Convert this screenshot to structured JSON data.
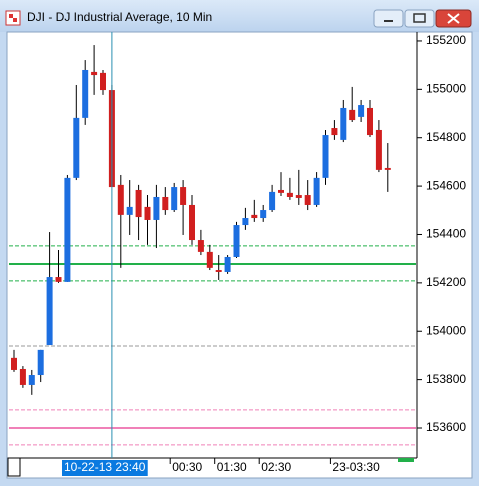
{
  "chart_data": {
    "type": "candlestick",
    "title": "DJI - DJ Industrial Average, 10 Min",
    "categories": [
      null,
      null,
      null,
      null,
      null,
      null,
      null,
      null,
      null,
      null,
      null,
      null,
      null,
      null,
      null,
      null,
      null,
      null,
      "00:30",
      null,
      null,
      null,
      null,
      "01:30",
      null,
      null,
      null,
      null,
      "02:30",
      null,
      null,
      null,
      null,
      null,
      null,
      null,
      "23-03:30",
      null,
      null,
      null,
      null,
      null,
      null
    ],
    "open": [
      153890,
      153844,
      153778,
      153819,
      153943,
      154224,
      154204,
      154634,
      154882,
      155072,
      155068,
      154997,
      154605,
      154481,
      154584,
      154514,
      154460,
      154555,
      154501,
      154596,
      154522,
      154377,
      154328,
      154253,
      154245,
      154307,
      154439,
      154481,
      154468,
      154501,
      154584,
      154572,
      154563,
      154563,
      154522,
      154634,
      154840,
      154791,
      154915,
      154886,
      154923,
      154832,
      154675
    ],
    "high": [
      153923,
      153856,
      153840,
      153923,
      154410,
      154336,
      154646,
      155018,
      155121,
      155183,
      155080,
      155018,
      154646,
      154625,
      154605,
      154563,
      154605,
      154596,
      154613,
      154625,
      154563,
      154419,
      154357,
      154315,
      154315,
      154452,
      154510,
      154543,
      154522,
      154605,
      154658,
      154634,
      154667,
      154625,
      154658,
      154832,
      154873,
      154956,
      155010,
      154956,
      154956,
      154873,
      154778
    ],
    "low": [
      153832,
      153766,
      153737,
      153790,
      153943,
      154200,
      154204,
      154625,
      154853,
      154977,
      154977,
      154596,
      154262,
      154398,
      154377,
      154357,
      154344,
      154481,
      154493,
      154398,
      154357,
      154315,
      154253,
      154212,
      154237,
      154303,
      154419,
      154452,
      154452,
      154493,
      154559,
      154543,
      154522,
      154501,
      154514,
      154605,
      154791,
      154782,
      154865,
      154865,
      154803,
      154658,
      154576
    ],
    "close": [
      153840,
      153778,
      153819,
      153923,
      154224,
      154204,
      154634,
      154882,
      155080,
      155059,
      154997,
      154596,
      154481,
      154514,
      154472,
      154460,
      154555,
      154501,
      154596,
      154522,
      154377,
      154328,
      154262,
      154245,
      154307,
      154439,
      154468,
      154468,
      154501,
      154576,
      154572,
      154555,
      154551,
      154522,
      154634,
      154811,
      154811,
      154923,
      154873,
      154935,
      154811,
      154667,
      154667
    ],
    "up_color": "#1c6ee0",
    "down_color": "#d11f1f",
    "ylim": [
      153476,
      155237
    ],
    "yticks": [
      153600,
      153800,
      154000,
      154200,
      154400,
      154600,
      154800,
      155000,
      155200
    ],
    "levels": [
      {
        "value": 154353,
        "color": "#22b04a",
        "style": "dashed"
      },
      {
        "value": 154278,
        "color": "#22b04a",
        "style": "solid"
      },
      {
        "value": 154208,
        "color": "#22b04a",
        "style": "dashed"
      },
      {
        "value": 153939,
        "color": "#999999",
        "style": "dashed"
      },
      {
        "value": 153675,
        "color": "#f080b8",
        "style": "dashed"
      },
      {
        "value": 153600,
        "color": "#f080b8",
        "style": "solid"
      },
      {
        "value": 153530,
        "color": "#f080b8",
        "style": "dashed"
      }
    ],
    "crosshair_index": 11,
    "crosshair_label": "10-22-13 23:40"
  }
}
